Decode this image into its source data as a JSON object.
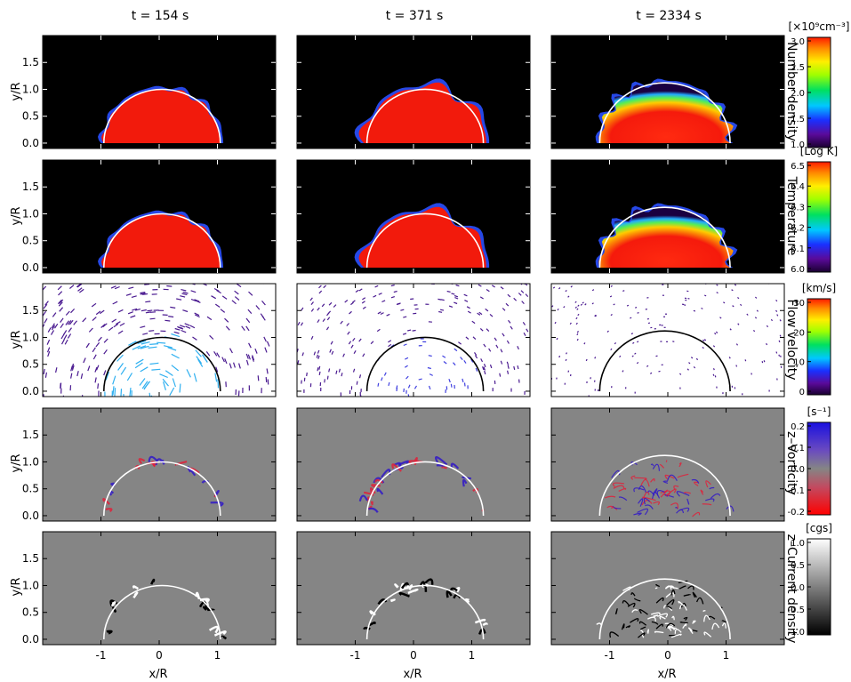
{
  "times": [
    "t =  154 s",
    "t =  371 s",
    "t = 2334 s"
  ],
  "axes": {
    "ylabel": "y/R",
    "xlabel": "x/R",
    "yticks": [
      "1.5",
      "1.0",
      "0.5",
      "0.0"
    ],
    "xticks": [
      "-1",
      "0",
      "1"
    ]
  },
  "rows": [
    {
      "label": "Number density",
      "unit": "[×10⁹cm⁻³]",
      "ticks": [
        "3.0",
        "2.5",
        "2.0",
        "1.5",
        "1.0"
      ],
      "colormap": "rainbow"
    },
    {
      "label": "Temperature",
      "unit": "[Log K]",
      "ticks": [
        "6.5",
        "6.4",
        "6.3",
        "6.2",
        "6.1",
        "6.0"
      ],
      "colormap": "rainbow"
    },
    {
      "label": "Flow velocity",
      "unit": "[km/s]",
      "ticks": [
        "30",
        "20",
        "10",
        "0"
      ],
      "colormap": "rainbow"
    },
    {
      "label": "z–Vorticity",
      "unit": "[s⁻¹]",
      "ticks": [
        "0.2",
        "0.1",
        "0.0",
        "-0.1",
        "-0.2"
      ],
      "colormap": "diverging"
    },
    {
      "label": "z–Current density",
      "unit": "[cgs]",
      "ticks": [
        "1.0",
        "0.5",
        "0.0",
        "-0.5",
        "-1.0"
      ],
      "colormap": "gray"
    }
  ],
  "colors": {
    "red": "#f21a0c",
    "background_dark": "#000000",
    "background_gray": "#858585",
    "circle_white": "#ffffff",
    "circle_black": "#000000"
  }
}
